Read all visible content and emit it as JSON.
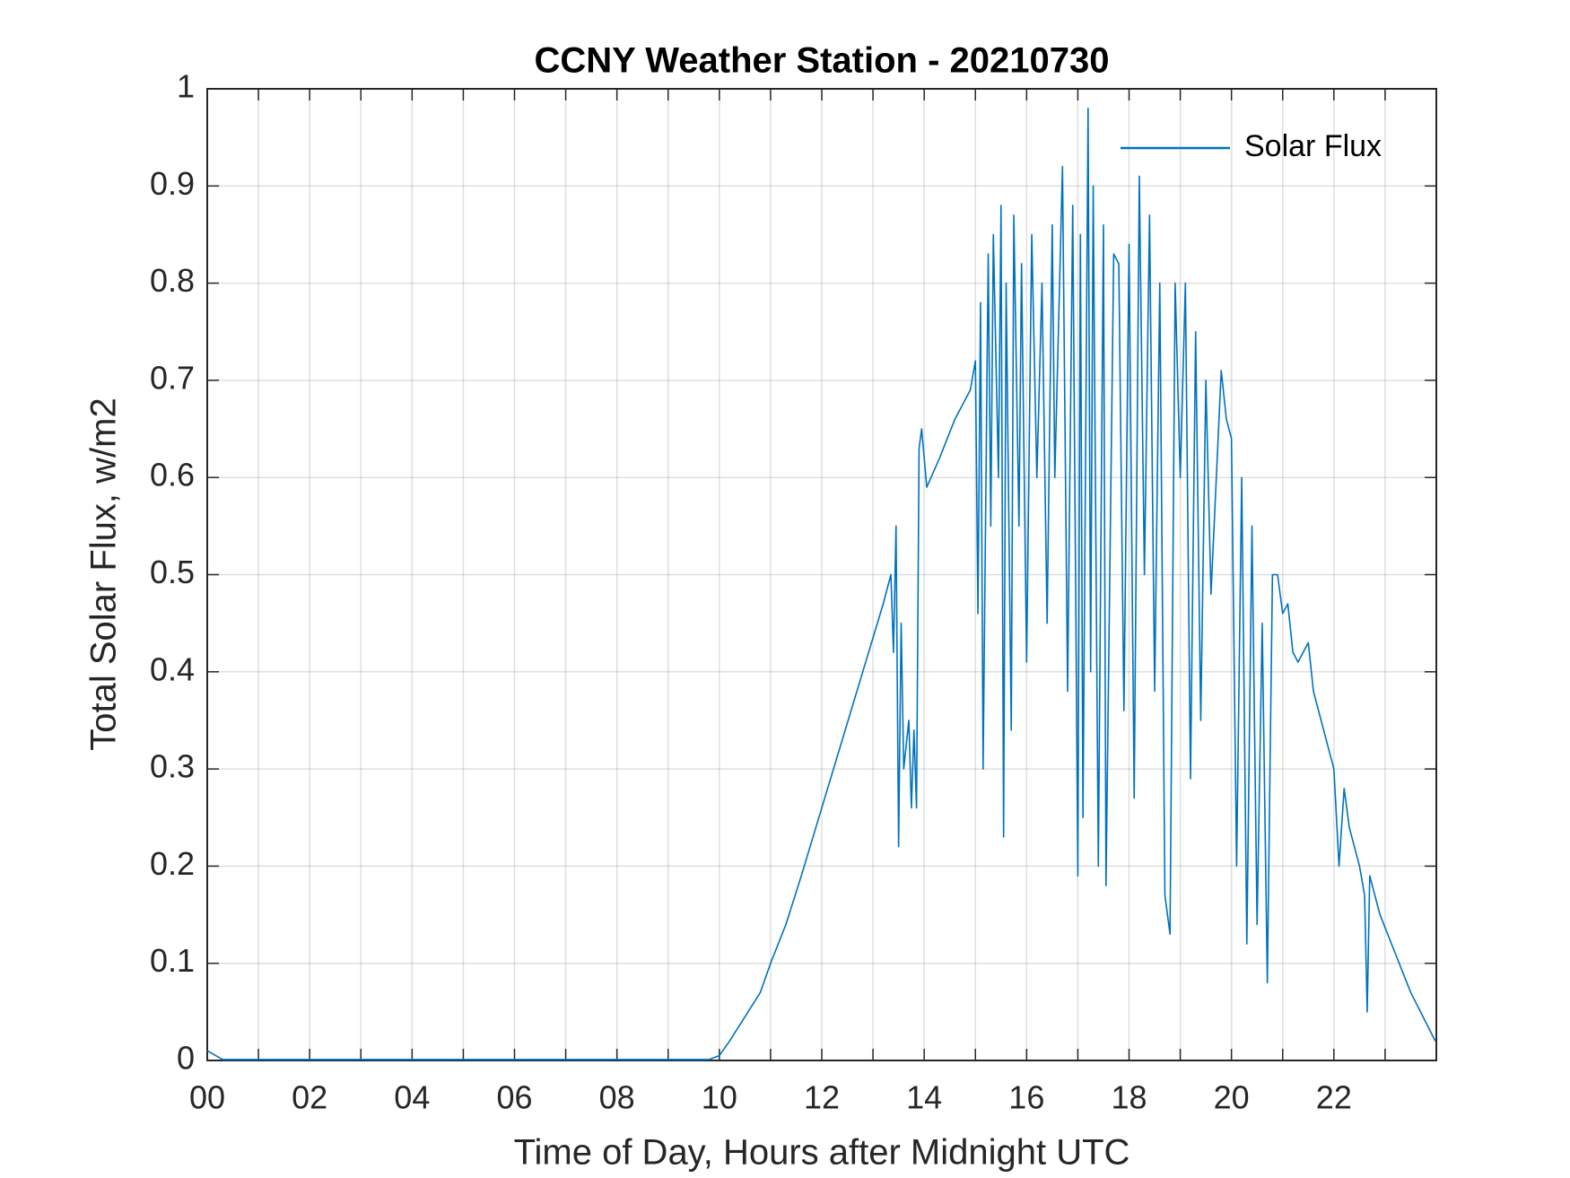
{
  "chart_data": {
    "type": "line",
    "title": "CCNY Weather Station - 20210730",
    "x_label": "Time of Day, Hours after Midnight UTC",
    "y_label": "Total Solar Flux, w/m2",
    "x": [
      0,
      0.3,
      9.8,
      10,
      10.2,
      10.5,
      10.8,
      11,
      11.3,
      11.6,
      12,
      12.4,
      12.8,
      13.2,
      13.35,
      13.4,
      13.45,
      13.5,
      13.55,
      13.6,
      13.7,
      13.75,
      13.8,
      13.85,
      13.9,
      13.95,
      14.05,
      14.3,
      14.6,
      14.9,
      15.0,
      15.05,
      15.1,
      15.15,
      15.25,
      15.3,
      15.35,
      15.45,
      15.5,
      15.55,
      15.6,
      15.7,
      15.75,
      15.85,
      15.9,
      16.0,
      16.1,
      16.2,
      16.3,
      16.4,
      16.5,
      16.55,
      16.7,
      16.8,
      16.9,
      17.0,
      17.05,
      17.1,
      17.2,
      17.25,
      17.3,
      17.4,
      17.5,
      17.55,
      17.7,
      17.8,
      17.9,
      18.0,
      18.1,
      18.2,
      18.3,
      18.4,
      18.5,
      18.6,
      18.7,
      18.8,
      18.9,
      19.0,
      19.1,
      19.2,
      19.3,
      19.4,
      19.5,
      19.6,
      19.8,
      19.9,
      20.0,
      20.1,
      20.2,
      20.3,
      20.4,
      20.5,
      20.6,
      20.7,
      20.8,
      20.9,
      21.0,
      21.1,
      21.2,
      21.3,
      21.5,
      21.6,
      21.7,
      21.9,
      22.0,
      22.1,
      22.2,
      22.3,
      22.5,
      22.6,
      22.65,
      22.7,
      22.9,
      23.2,
      23.5,
      23.98
    ],
    "series": [
      {
        "name": "Solar Flux",
        "color": "#0072bd",
        "values": [
          0.01,
          0.001,
          0.001,
          0.005,
          0.02,
          0.045,
          0.07,
          0.1,
          0.14,
          0.19,
          0.26,
          0.33,
          0.4,
          0.47,
          0.5,
          0.42,
          0.55,
          0.22,
          0.45,
          0.3,
          0.35,
          0.26,
          0.34,
          0.26,
          0.63,
          0.65,
          0.59,
          0.62,
          0.66,
          0.69,
          0.72,
          0.46,
          0.78,
          0.3,
          0.83,
          0.55,
          0.85,
          0.6,
          0.88,
          0.23,
          0.8,
          0.34,
          0.87,
          0.55,
          0.82,
          0.41,
          0.85,
          0.6,
          0.8,
          0.45,
          0.86,
          0.6,
          0.92,
          0.38,
          0.88,
          0.19,
          0.85,
          0.25,
          0.98,
          0.4,
          0.9,
          0.2,
          0.86,
          0.18,
          0.83,
          0.82,
          0.36,
          0.84,
          0.27,
          0.91,
          0.5,
          0.87,
          0.38,
          0.8,
          0.17,
          0.13,
          0.8,
          0.6,
          0.8,
          0.29,
          0.75,
          0.35,
          0.7,
          0.48,
          0.71,
          0.66,
          0.64,
          0.2,
          0.6,
          0.12,
          0.55,
          0.14,
          0.45,
          0.08,
          0.5,
          0.5,
          0.46,
          0.47,
          0.42,
          0.41,
          0.43,
          0.38,
          0.36,
          0.32,
          0.3,
          0.2,
          0.28,
          0.24,
          0.2,
          0.17,
          0.05,
          0.19,
          0.15,
          0.11,
          0.07,
          0.02
        ]
      }
    ],
    "xlim": [
      0,
      24
    ],
    "xticks": [
      {
        "value": 0,
        "label": "00"
      },
      {
        "value": 2,
        "label": "02"
      },
      {
        "value": 4,
        "label": "04"
      },
      {
        "value": 6,
        "label": "06"
      },
      {
        "value": 8,
        "label": "08"
      },
      10,
      12,
      14,
      16,
      18,
      20,
      22
    ],
    "xminorticks": [
      1,
      3,
      5,
      7,
      9,
      11,
      13,
      15,
      17,
      19,
      21,
      23
    ],
    "ylim": [
      0,
      1
    ],
    "yticks": [
      0,
      0.1,
      0.2,
      0.3,
      0.4,
      0.5,
      0.6,
      0.7,
      0.8,
      0.9,
      1
    ],
    "grid": true,
    "legend": "northeast"
  }
}
